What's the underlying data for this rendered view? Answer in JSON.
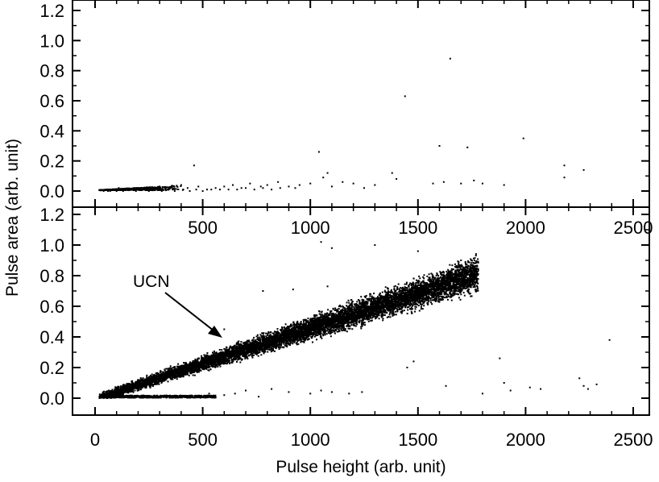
{
  "chart_data": [
    {
      "panel": "top",
      "type": "scatter",
      "title": "",
      "xlabel": "",
      "ylabel": "",
      "xlim": [
        0,
        2500
      ],
      "ylim": [
        -0.1,
        1.25
      ],
      "x_ticks": [
        "500",
        "1000",
        "1500",
        "2000",
        "2500"
      ],
      "y_ticks": [
        "0.0",
        "0.2",
        "0.4",
        "0.6",
        "0.8",
        "1.0",
        "1.2"
      ],
      "grid": false,
      "series": [
        {
          "points": [
            [
              1650,
              0.88
            ],
            [
              1440,
              0.63
            ],
            [
              1600,
              0.3
            ],
            [
              1730,
              0.29
            ],
            [
              1990,
              0.35
            ],
            [
              1040,
              0.26
            ],
            [
              460,
              0.17
            ],
            [
              2180,
              0.17
            ],
            [
              2180,
              0.09
            ],
            [
              2270,
              0.14
            ],
            [
              1080,
              0.12
            ],
            [
              1060,
              0.09
            ],
            [
              1380,
              0.12
            ],
            [
              1400,
              0.08
            ],
            [
              1620,
              0.06
            ],
            [
              1760,
              0.07
            ],
            [
              1570,
              0.05
            ],
            [
              1700,
              0.05
            ],
            [
              1800,
              0.05
            ],
            [
              1900,
              0.04
            ],
            [
              1300,
              0.04
            ],
            [
              1200,
              0.05
            ],
            [
              1150,
              0.06
            ],
            [
              1000,
              0.05
            ],
            [
              950,
              0.04
            ],
            [
              900,
              0.03
            ],
            [
              850,
              0.06
            ],
            [
              800,
              0.04
            ],
            [
              770,
              0.03
            ],
            [
              720,
              0.05
            ],
            [
              680,
              0.02
            ],
            [
              640,
              0.04
            ],
            [
              600,
              0.03
            ],
            [
              560,
              0.02
            ],
            [
              520,
              0.01
            ],
            [
              480,
              0.03
            ],
            [
              430,
              0.02
            ],
            [
              400,
              0.04
            ],
            [
              360,
              0.01
            ],
            [
              330,
              0.02
            ],
            [
              300,
              0.03
            ],
            [
              270,
              0.01
            ],
            [
              240,
              0.02
            ],
            [
              210,
              0.01
            ],
            [
              180,
              0.02
            ],
            [
              150,
              0.01
            ],
            [
              120,
              0.01
            ],
            [
              100,
              0.0
            ],
            [
              80,
              0.01
            ],
            [
              60,
              0.0
            ],
            [
              50,
              0.01
            ],
            [
              40,
              0.0
            ],
            [
              70,
              0.0
            ],
            [
              90,
              0.01
            ],
            [
              110,
              0.02
            ],
            [
              130,
              0.0
            ],
            [
              160,
              0.01
            ],
            [
              190,
              0.0
            ],
            [
              220,
              0.01
            ],
            [
              250,
              0.0
            ],
            [
              280,
              0.01
            ],
            [
              310,
              0.0
            ],
            [
              340,
              0.01
            ],
            [
              370,
              0.0
            ],
            [
              410,
              0.01
            ],
            [
              440,
              0.0
            ],
            [
              470,
              0.01
            ],
            [
              500,
              0.0
            ],
            [
              540,
              0.01
            ],
            [
              580,
              0.01
            ],
            [
              620,
              0.01
            ],
            [
              660,
              0.01
            ],
            [
              700,
              0.02
            ],
            [
              740,
              0.01
            ],
            [
              780,
              0.02
            ],
            [
              820,
              0.01
            ],
            [
              860,
              0.02
            ],
            [
              930,
              0.02
            ],
            [
              1100,
              0.03
            ],
            [
              1250,
              0.02
            ]
          ]
        }
      ]
    },
    {
      "panel": "bottom",
      "type": "scatter",
      "title": "",
      "xlabel": "Pulse height (arb. unit)",
      "ylabel": "",
      "xlim": [
        0,
        2500
      ],
      "ylim": [
        -0.1,
        1.25
      ],
      "x_ticks": [
        "0",
        "500",
        "1000",
        "1500",
        "2000",
        "2500"
      ],
      "y_ticks": [
        "0.0",
        "0.2",
        "0.4",
        "0.6",
        "0.8",
        "1.0",
        "1.2"
      ],
      "grid": false,
      "series": [
        {
          "description_band": {
            "x_range": [
              20,
              1780
            ],
            "y_center_slope": 0.00046,
            "y_center_intercept": -0.005
          },
          "outliers": [
            [
              780,
              0.7
            ],
            [
              920,
              0.71
            ],
            [
              1080,
              0.73
            ],
            [
              1050,
              1.02
            ],
            [
              1100,
              0.98
            ],
            [
              1300,
              1.0
            ],
            [
              1500,
              0.96
            ],
            [
              1700,
              0.9
            ],
            [
              1880,
              0.26
            ],
            [
              1900,
              0.1
            ],
            [
              1930,
              0.05
            ],
            [
              2020,
              0.07
            ],
            [
              2070,
              0.06
            ],
            [
              2250,
              0.13
            ],
            [
              2270,
              0.08
            ],
            [
              2290,
              0.06
            ],
            [
              2330,
              0.09
            ],
            [
              2390,
              0.38
            ],
            [
              1630,
              0.08
            ],
            [
              1800,
              0.03
            ],
            [
              1480,
              0.24
            ],
            [
              1450,
              0.2
            ],
            [
              600,
              0.45
            ],
            [
              700,
              0.05
            ],
            [
              820,
              0.06
            ],
            [
              900,
              0.04
            ],
            [
              1000,
              0.03
            ],
            [
              1050,
              0.05
            ],
            [
              1100,
              0.04
            ],
            [
              1180,
              0.03
            ],
            [
              1240,
              0.04
            ],
            [
              600,
              0.02
            ],
            [
              650,
              0.03
            ],
            [
              760,
              0.01
            ],
            [
              530,
              0.03
            ]
          ],
          "low_branch": {
            "x_range": [
              20,
              560
            ],
            "y": 0.01
          }
        }
      ]
    }
  ],
  "annotations": {
    "shared_ylabel": "Pulse area (arb. unit)",
    "ucn_label": "UCN"
  }
}
